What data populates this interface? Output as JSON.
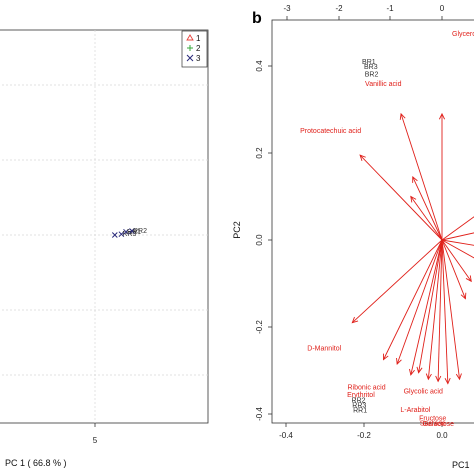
{
  "panel_b_label": "b",
  "chart_data": [
    {
      "type": "scatter",
      "panel": "a",
      "xlabel": "PC 1 ( 66.8 % )",
      "x_ticks": [
        "5"
      ],
      "legend": {
        "placement": "top-right",
        "entries": [
          {
            "label": "1",
            "marker": "triangle",
            "color": "#e8403a"
          },
          {
            "label": "2",
            "marker": "plus",
            "color": "#35a83a"
          },
          {
            "label": "3",
            "marker": "cross",
            "color": "#2a2a7a"
          }
        ]
      },
      "grid": true,
      "points": [
        {
          "series": "3",
          "x": 6.5,
          "y": 0.0,
          "label": ""
        },
        {
          "series": "3",
          "x": 7.0,
          "y": 0.02,
          "label": "RR3"
        },
        {
          "series": "3",
          "x": 7.35,
          "y": 0.08,
          "label": "RR1"
        },
        {
          "series": "3",
          "x": 7.8,
          "y": 0.1,
          "label": "RR2"
        }
      ]
    },
    {
      "type": "scatter",
      "panel": "b",
      "xlabel": "PC1",
      "ylabel": "PC2",
      "xlim": [
        -0.45,
        0.1
      ],
      "ylim": [
        -0.42,
        0.45
      ],
      "x_ticks": [
        "-0.4",
        "-0.2",
        "0.0"
      ],
      "y_ticks": [
        "-0.4",
        "-0.2",
        "0.0",
        "0.2",
        "0.4"
      ],
      "top_ticks": [
        "-3",
        "-2",
        "-1",
        "0"
      ],
      "grid": false,
      "observations": [
        {
          "label": "BR1",
          "x": -0.205,
          "y": 0.405
        },
        {
          "label": "BR3",
          "x": -0.2,
          "y": 0.393
        },
        {
          "label": "BR2",
          "x": -0.198,
          "y": 0.376
        },
        {
          "label": "RR2",
          "x": -0.232,
          "y": -0.373
        },
        {
          "label": "RR3",
          "x": -0.23,
          "y": -0.385
        },
        {
          "label": "RR1",
          "x": -0.228,
          "y": -0.397
        }
      ],
      "arrows": [
        {
          "label": "Vanillic acid",
          "x": -0.105,
          "y": 0.29
        },
        {
          "label": "Glycerol",
          "x": 0.0,
          "y": 0.29
        },
        {
          "label": "Protocatechuic acid",
          "x": -0.21,
          "y": 0.195
        },
        {
          "label": "D-Mannitol",
          "x": -0.23,
          "y": -0.19
        },
        {
          "label": "Ribonic acid",
          "x": -0.15,
          "y": -0.275
        },
        {
          "label": "Erythritol",
          "x": -0.115,
          "y": -0.285
        },
        {
          "label": "",
          "x": -0.08,
          "y": -0.31
        },
        {
          "label": "Glycolic acid",
          "x": -0.06,
          "y": -0.305
        },
        {
          "label": "L-Arabitol",
          "x": -0.035,
          "y": -0.32
        },
        {
          "label": "Fructose",
          "x": -0.01,
          "y": -0.325
        },
        {
          "label": "Sucrose",
          "x": 0.015,
          "y": -0.33
        },
        {
          "label": "Galactose",
          "x": 0.045,
          "y": -0.32
        },
        {
          "label": "",
          "x": -0.075,
          "y": 0.145
        },
        {
          "label": "",
          "x": -0.08,
          "y": 0.1
        },
        {
          "label": "",
          "x": 0.1,
          "y": 0.065
        },
        {
          "label": "",
          "x": 0.1,
          "y": 0.02
        },
        {
          "label": "",
          "x": 0.1,
          "y": -0.015
        },
        {
          "label": "",
          "x": 0.1,
          "y": -0.05
        },
        {
          "label": "",
          "x": 0.075,
          "y": -0.095
        },
        {
          "label": "",
          "x": 0.06,
          "y": -0.135
        }
      ],
      "arrow_color": "#e0201a"
    }
  ]
}
